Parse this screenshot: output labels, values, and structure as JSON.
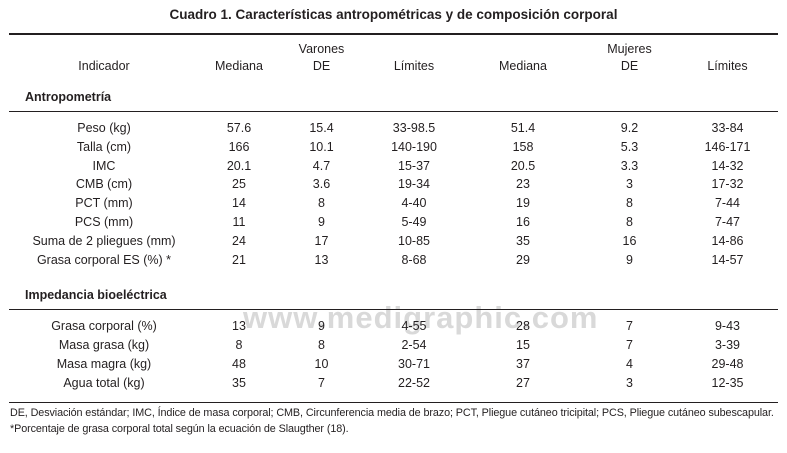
{
  "title": "Cuadro 1. Características antropométricas y de composición corporal",
  "watermark": "www.medigraphic.com",
  "colors": {
    "text": "#231f20",
    "rule": "#231f20",
    "watermark": "#d9d9d9",
    "background": "#ffffff"
  },
  "table": {
    "group_headers": {
      "varones": "Varones",
      "mujeres": "Mujeres"
    },
    "columns": [
      "Indicador",
      "Mediana",
      "DE",
      "Límites",
      "Mediana",
      "DE",
      "Límites"
    ],
    "sections": [
      {
        "header": "Antropometría",
        "rows": [
          {
            "label": "Peso (kg)",
            "values": [
              "57.6",
              "15.4",
              "33-98.5",
              "51.4",
              "9.2",
              "33-84"
            ]
          },
          {
            "label": "Talla (cm)",
            "values": [
              "166",
              "10.1",
              "140-190",
              "158",
              "5.3",
              "146-171"
            ]
          },
          {
            "label": "IMC",
            "values": [
              "20.1",
              "4.7",
              "15-37",
              "20.5",
              "3.3",
              "14-32"
            ]
          },
          {
            "label": "CMB (cm)",
            "values": [
              "25",
              "3.6",
              "19-34",
              "23",
              "3",
              "17-32"
            ]
          },
          {
            "label": "PCT (mm)",
            "values": [
              "14",
              "8",
              "4-40",
              "19",
              "8",
              "7-44"
            ]
          },
          {
            "label": "PCS (mm)",
            "values": [
              "11",
              "9",
              "5-49",
              "16",
              "8",
              "7-47"
            ]
          },
          {
            "label": "Suma de 2 pliegues (mm)",
            "values": [
              "24",
              "17",
              "10-85",
              "35",
              "16",
              "14-86"
            ]
          },
          {
            "label": "Grasa corporal ES (%) *",
            "values": [
              "21",
              "13",
              "8-68",
              "29",
              "9",
              "14-57"
            ]
          }
        ]
      },
      {
        "header": "Impedancia bioeléctrica",
        "rows": [
          {
            "label": "Grasa corporal (%)",
            "values": [
              "13",
              "9",
              "4-55",
              "28",
              "7",
              "9-43"
            ]
          },
          {
            "label": "Masa grasa (kg)",
            "values": [
              "8",
              "8",
              "2-54",
              "15",
              "7",
              "3-39"
            ]
          },
          {
            "label": "Masa magra (kg)",
            "values": [
              "48",
              "10",
              "30-71",
              "37",
              "4",
              "29-48"
            ]
          },
          {
            "label": "Agua total (kg)",
            "values": [
              "35",
              "7",
              "22-52",
              "27",
              "3",
              "12-35"
            ]
          }
        ]
      }
    ]
  },
  "footnotes": [
    "DE, Desviación estándar; IMC, Índice de masa corporal; CMB, Circunferencia media de brazo; PCT, Pliegue cutáneo tricipital; PCS, Pliegue cutáneo subescapular.",
    "*Porcentaje de grasa corporal total según la ecuación de Slaugther (18)."
  ]
}
